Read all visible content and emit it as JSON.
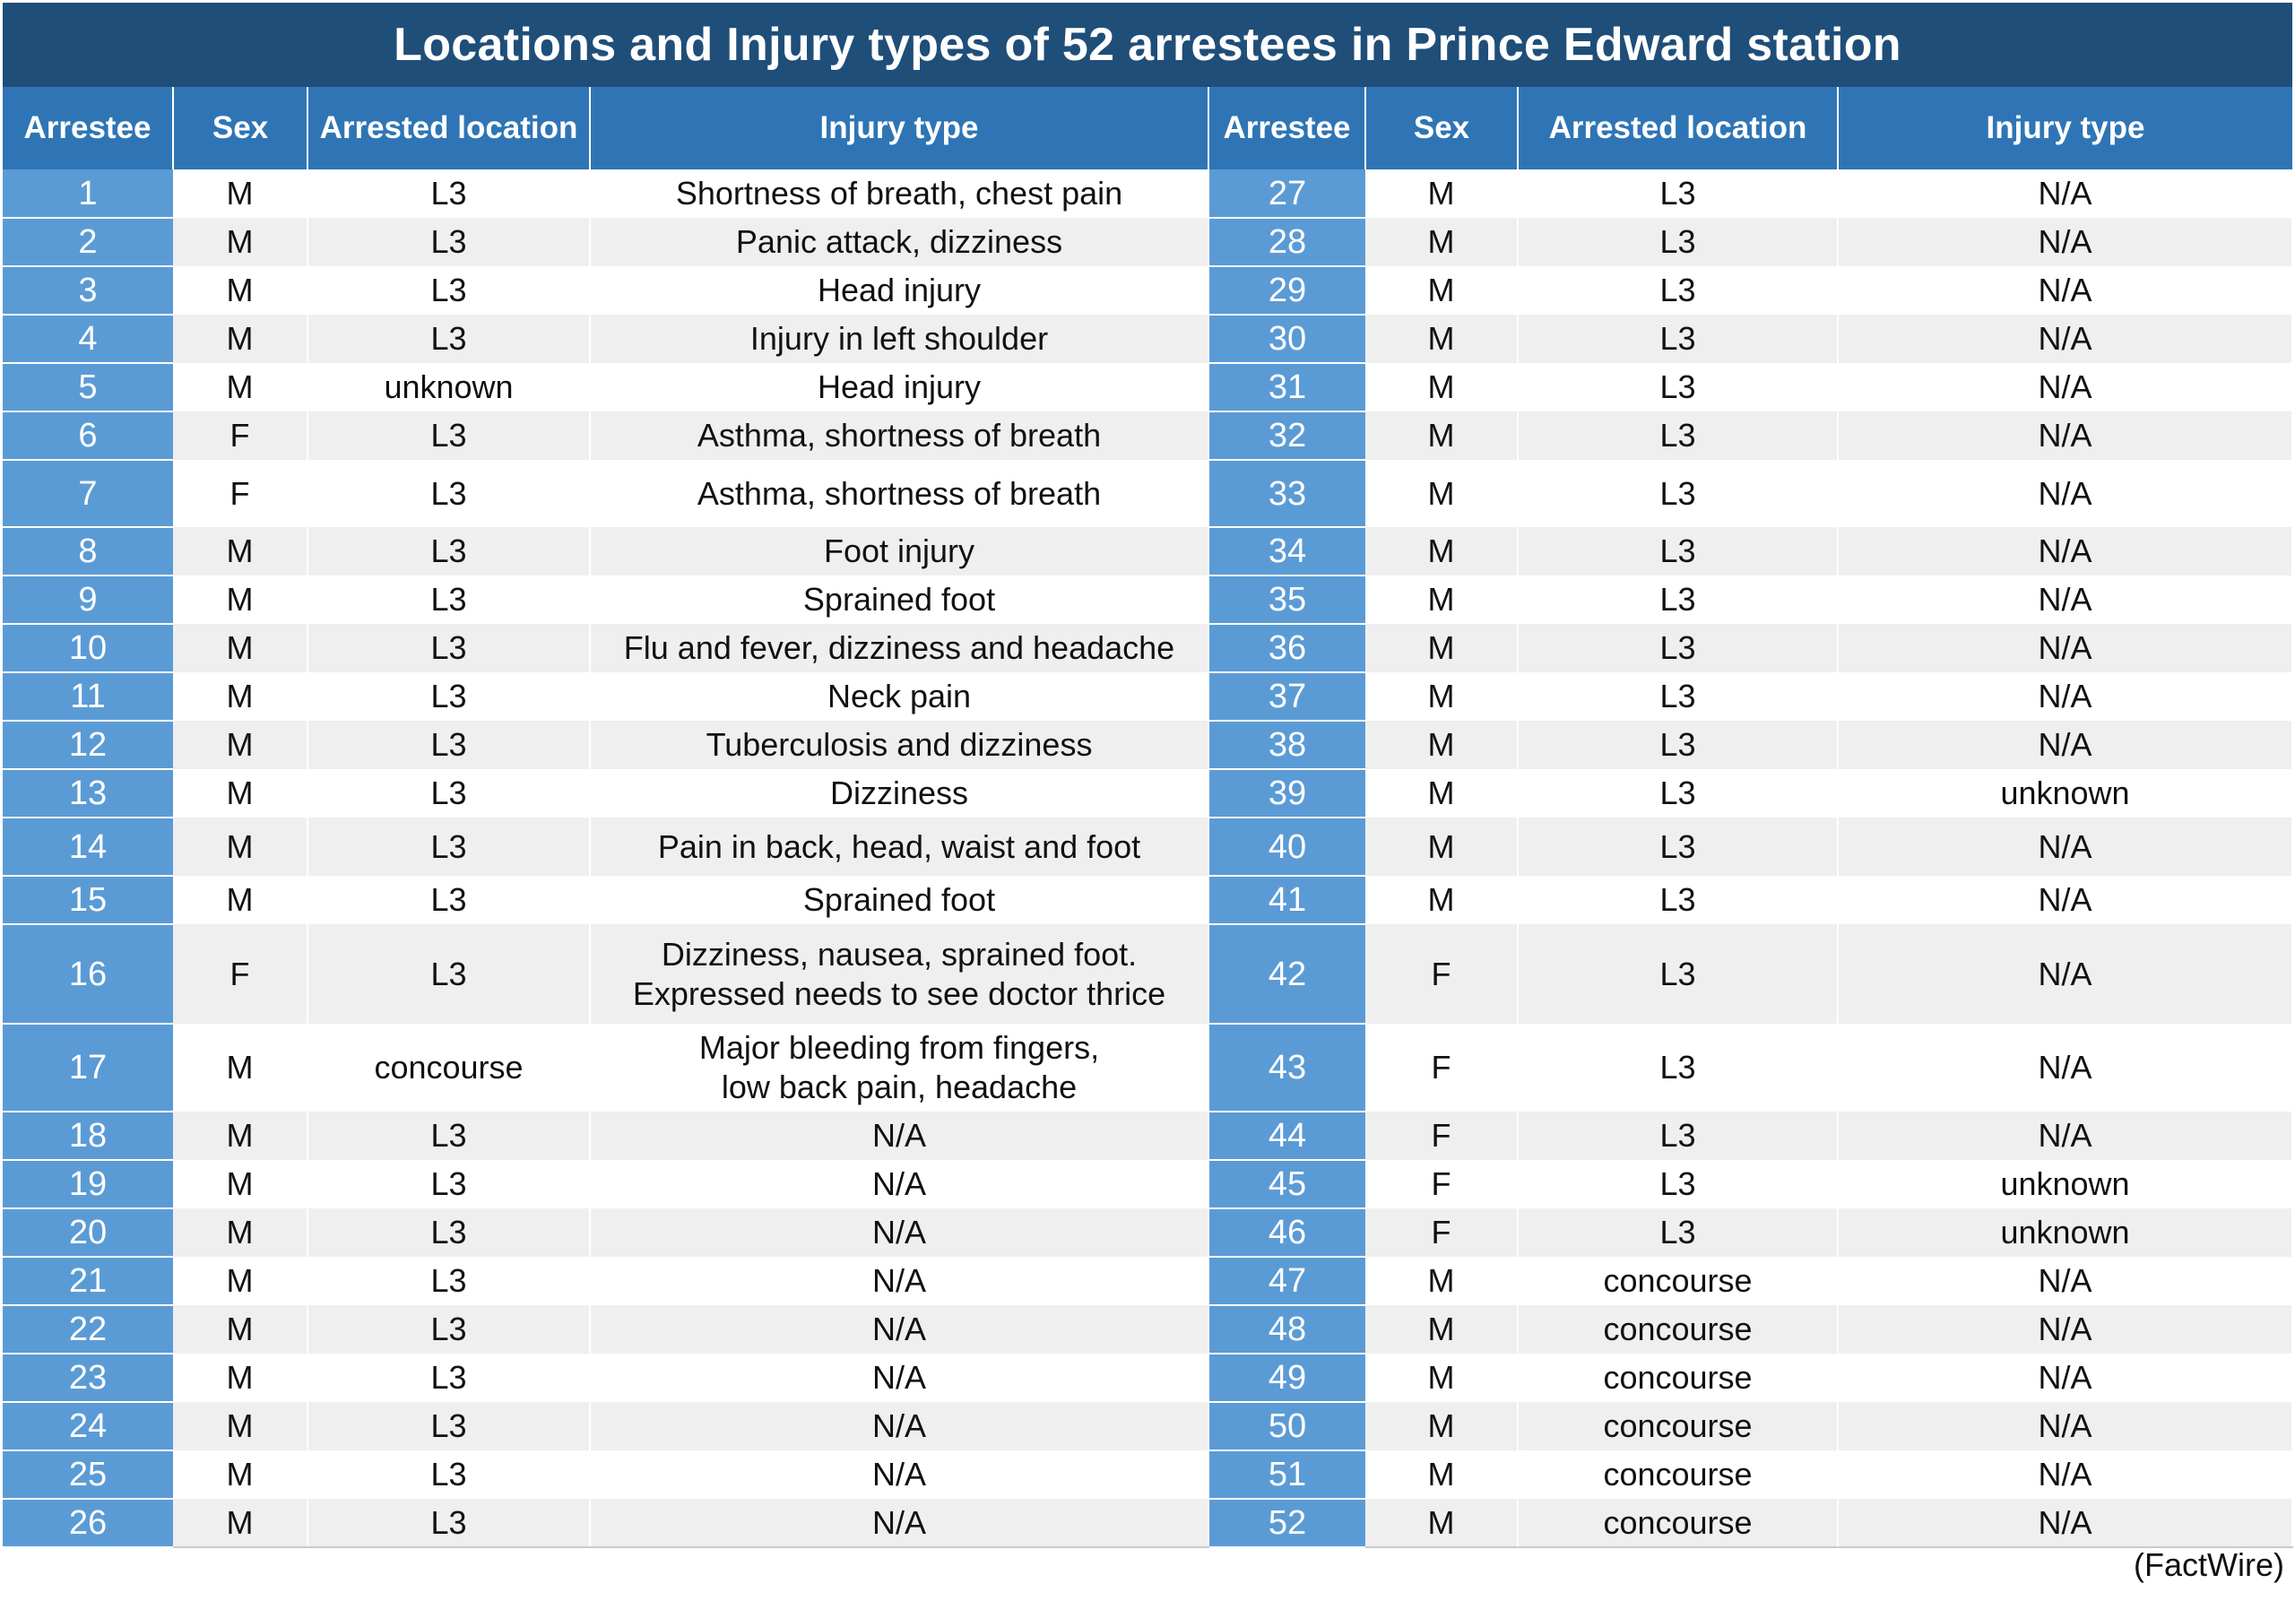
{
  "title": "Locations and Injury types of 52 arrestees in Prince Edward station",
  "headers": [
    "Arrestee",
    "Sex",
    "Arrested location",
    "Injury type",
    "Arrestee",
    "Sex",
    "Arrested location",
    "Injury type"
  ],
  "rows": [
    {
      "left": {
        "id": "1",
        "sex": "M",
        "location": "L3",
        "injury": [
          "Shortness of breath, chest pain"
        ]
      },
      "right": {
        "id": "27",
        "sex": "M",
        "location": "L3",
        "injury": [
          "N/A"
        ]
      }
    },
    {
      "left": {
        "id": "2",
        "sex": "M",
        "location": "L3",
        "injury": [
          "Panic attack, dizziness"
        ]
      },
      "right": {
        "id": "28",
        "sex": "M",
        "location": "L3",
        "injury": [
          "N/A"
        ]
      }
    },
    {
      "left": {
        "id": "3",
        "sex": "M",
        "location": "L3",
        "injury": [
          "Head injury"
        ]
      },
      "right": {
        "id": "29",
        "sex": "M",
        "location": "L3",
        "injury": [
          "N/A"
        ]
      }
    },
    {
      "left": {
        "id": "4",
        "sex": "M",
        "location": "L3",
        "injury": [
          "Injury in left shoulder"
        ]
      },
      "right": {
        "id": "30",
        "sex": "M",
        "location": "L3",
        "injury": [
          "N/A"
        ]
      }
    },
    {
      "left": {
        "id": "5",
        "sex": "M",
        "location": "unknown",
        "injury": [
          "Head injury"
        ]
      },
      "right": {
        "id": "31",
        "sex": "M",
        "location": "L3",
        "injury": [
          "N/A"
        ]
      }
    },
    {
      "left": {
        "id": "6",
        "sex": "F",
        "location": "L3",
        "injury": [
          "Asthma, shortness of breath"
        ]
      },
      "right": {
        "id": "32",
        "sex": "M",
        "location": "L3",
        "injury": [
          "N/A"
        ]
      }
    },
    {
      "left": {
        "id": "7",
        "sex": "F",
        "location": "L3",
        "injury": [
          "Asthma, shortness of breath"
        ]
      },
      "right": {
        "id": "33",
        "sex": "M",
        "location": "L3",
        "injury": [
          "N/A"
        ]
      }
    },
    {
      "left": {
        "id": "8",
        "sex": "M",
        "location": "L3",
        "injury": [
          "Foot injury"
        ]
      },
      "right": {
        "id": "34",
        "sex": "M",
        "location": "L3",
        "injury": [
          "N/A"
        ]
      }
    },
    {
      "left": {
        "id": "9",
        "sex": "M",
        "location": "L3",
        "injury": [
          "Sprained foot"
        ]
      },
      "right": {
        "id": "35",
        "sex": "M",
        "location": "L3",
        "injury": [
          "N/A"
        ]
      }
    },
    {
      "left": {
        "id": "10",
        "sex": "M",
        "location": "L3",
        "injury": [
          "Flu and fever, dizziness and headache"
        ]
      },
      "right": {
        "id": "36",
        "sex": "M",
        "location": "L3",
        "injury": [
          "N/A"
        ]
      }
    },
    {
      "left": {
        "id": "11",
        "sex": "M",
        "location": "L3",
        "injury": [
          "Neck pain"
        ]
      },
      "right": {
        "id": "37",
        "sex": "M",
        "location": "L3",
        "injury": [
          "N/A"
        ]
      }
    },
    {
      "left": {
        "id": "12",
        "sex": "M",
        "location": "L3",
        "injury": [
          "Tuberculosis and dizziness"
        ]
      },
      "right": {
        "id": "38",
        "sex": "M",
        "location": "L3",
        "injury": [
          "N/A"
        ]
      }
    },
    {
      "left": {
        "id": "13",
        "sex": "M",
        "location": "L3",
        "injury": [
          "Dizziness"
        ]
      },
      "right": {
        "id": "39",
        "sex": "M",
        "location": "L3",
        "injury": [
          "unknown"
        ]
      }
    },
    {
      "left": {
        "id": "14",
        "sex": "M",
        "location": "L3",
        "injury": [
          "Pain in back, head, waist and foot"
        ]
      },
      "right": {
        "id": "40",
        "sex": "M",
        "location": "L3",
        "injury": [
          "N/A"
        ]
      }
    },
    {
      "left": {
        "id": "15",
        "sex": "M",
        "location": "L3",
        "injury": [
          "Sprained foot"
        ]
      },
      "right": {
        "id": "41",
        "sex": "M",
        "location": "L3",
        "injury": [
          "N/A"
        ]
      }
    },
    {
      "left": {
        "id": "16",
        "sex": "F",
        "location": "L3",
        "injury": [
          "Dizziness, nausea, sprained foot.",
          "Expressed needs to see doctor thrice"
        ]
      },
      "right": {
        "id": "42",
        "sex": "F",
        "location": "L3",
        "injury": [
          "N/A"
        ]
      }
    },
    {
      "left": {
        "id": "17",
        "sex": "M",
        "location": "concourse",
        "injury": [
          "Major bleeding from fingers,",
          "low back pain, headache"
        ]
      },
      "right": {
        "id": "43",
        "sex": "F",
        "location": "L3",
        "injury": [
          "N/A"
        ]
      }
    },
    {
      "left": {
        "id": "18",
        "sex": "M",
        "location": "L3",
        "injury": [
          "N/A"
        ]
      },
      "right": {
        "id": "44",
        "sex": "F",
        "location": "L3",
        "injury": [
          "N/A"
        ]
      }
    },
    {
      "left": {
        "id": "19",
        "sex": "M",
        "location": "L3",
        "injury": [
          "N/A"
        ]
      },
      "right": {
        "id": "45",
        "sex": "F",
        "location": "L3",
        "injury": [
          "unknown"
        ]
      }
    },
    {
      "left": {
        "id": "20",
        "sex": "M",
        "location": "L3",
        "injury": [
          "N/A"
        ]
      },
      "right": {
        "id": "46",
        "sex": "F",
        "location": "L3",
        "injury": [
          "unknown"
        ]
      }
    },
    {
      "left": {
        "id": "21",
        "sex": "M",
        "location": "L3",
        "injury": [
          "N/A"
        ]
      },
      "right": {
        "id": "47",
        "sex": "M",
        "location": "concourse",
        "injury": [
          "N/A"
        ]
      }
    },
    {
      "left": {
        "id": "22",
        "sex": "M",
        "location": "L3",
        "injury": [
          "N/A"
        ]
      },
      "right": {
        "id": "48",
        "sex": "M",
        "location": "concourse",
        "injury": [
          "N/A"
        ]
      }
    },
    {
      "left": {
        "id": "23",
        "sex": "M",
        "location": "L3",
        "injury": [
          "N/A"
        ]
      },
      "right": {
        "id": "49",
        "sex": "M",
        "location": "concourse",
        "injury": [
          "N/A"
        ]
      }
    },
    {
      "left": {
        "id": "24",
        "sex": "M",
        "location": "L3",
        "injury": [
          "N/A"
        ]
      },
      "right": {
        "id": "50",
        "sex": "M",
        "location": "concourse",
        "injury": [
          "N/A"
        ]
      }
    },
    {
      "left": {
        "id": "25",
        "sex": "M",
        "location": "L3",
        "injury": [
          "N/A"
        ]
      },
      "right": {
        "id": "51",
        "sex": "M",
        "location": "concourse",
        "injury": [
          "N/A"
        ]
      }
    },
    {
      "left": {
        "id": "26",
        "sex": "M",
        "location": "L3",
        "injury": [
          "N/A"
        ]
      },
      "right": {
        "id": "52",
        "sex": "M",
        "location": "concourse",
        "injury": [
          "N/A"
        ]
      }
    }
  ],
  "source": "(FactWire)",
  "colors": {
    "title_bg": "#1f4e79",
    "header_bg": "#2f75b5",
    "number_cell_bg": "#5b9bd5",
    "row_alt_bg": "#efefef"
  }
}
